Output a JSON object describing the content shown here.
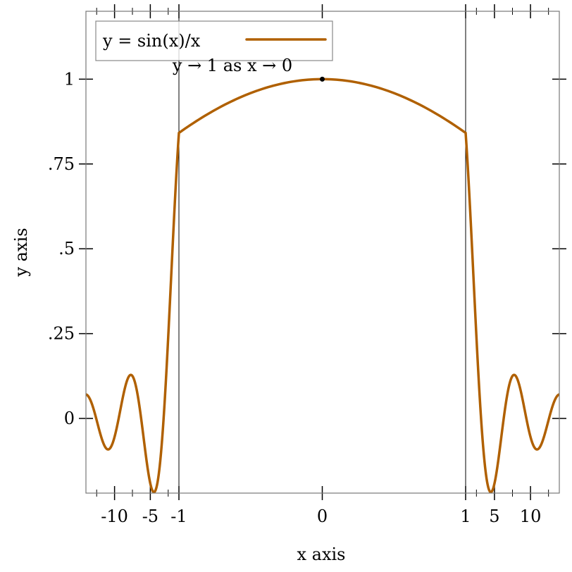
{
  "chart_data": {
    "type": "line",
    "title": "",
    "xlabel": "x axis",
    "ylabel": "y axis",
    "xlim": [
      -14,
      14
    ],
    "ylim": [
      -0.22,
      1.2
    ],
    "x_transform": "stretch between -1 and 1",
    "x_ticks": [
      {
        "value": -10,
        "label": "-10"
      },
      {
        "value": -5,
        "label": "-5"
      },
      {
        "value": -1,
        "label": "-1"
      },
      {
        "value": 0,
        "label": "0"
      },
      {
        "value": 1,
        "label": "1"
      },
      {
        "value": 5,
        "label": "5"
      },
      {
        "value": 10,
        "label": "10"
      }
    ],
    "x_minor_ticks": [
      -12.5,
      -7.5,
      -2.5,
      2.5,
      7.5,
      12.5
    ],
    "y_ticks": [
      {
        "value": 0,
        "label": "0"
      },
      {
        "value": 0.25,
        "label": ".25"
      },
      {
        "value": 0.5,
        "label": ".5"
      },
      {
        "value": 0.75,
        "label": ".75"
      },
      {
        "value": 1,
        "label": "1"
      }
    ],
    "series": [
      {
        "name": "y = sin(x)/x",
        "function": "sin(x)/x",
        "color": "#b06000"
      }
    ],
    "vertical_lines": [
      -1,
      1
    ],
    "point": {
      "x": 0,
      "y": 1,
      "label": "y → 1 as x → 0"
    },
    "legend": "top-left",
    "grid": false
  }
}
